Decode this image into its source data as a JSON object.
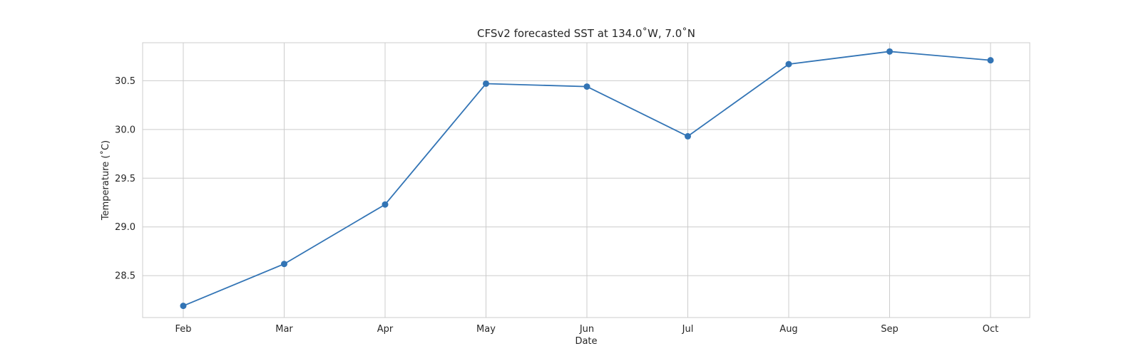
{
  "chart_data": {
    "type": "line",
    "title": "CFSv2 forecasted SST at 134.0˚W, 7.0˚N",
    "xlabel": "Date",
    "ylabel": "Temperature (˚C)",
    "categories": [
      "Feb",
      "Mar",
      "Apr",
      "May",
      "Jun",
      "Jul",
      "Aug",
      "Sep",
      "Oct"
    ],
    "series": [
      {
        "values": [
          28.19,
          28.62,
          29.23,
          30.47,
          30.44,
          29.93,
          30.67,
          30.8,
          30.71
        ],
        "color": "#3274b5",
        "marker": "circle"
      }
    ],
    "ylim": [
      28.07,
      30.89
    ],
    "yticks": [
      "28.5",
      "29.0",
      "29.5",
      "30.0",
      "30.5"
    ],
    "grid": true,
    "legend": "none"
  }
}
